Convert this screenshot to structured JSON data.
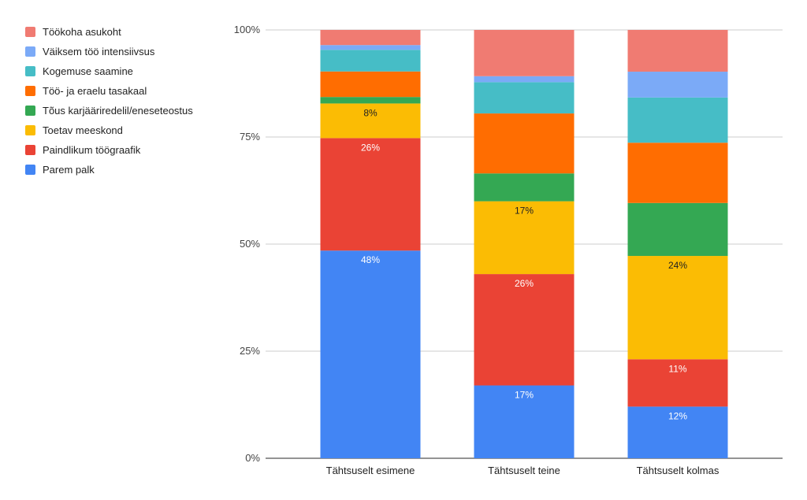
{
  "chart_data": {
    "type": "bar",
    "stacked": true,
    "normalized": true,
    "categories": [
      "Tähtsuselt esimene",
      "Tähtsuselt teine",
      "Tähtsuselt kolmas"
    ],
    "y_ticks": [
      "0%",
      "25%",
      "50%",
      "75%",
      "100%"
    ],
    "ylim": [
      0,
      100
    ],
    "grid": true,
    "legend_position": "left",
    "series": [
      {
        "name": "Parem palk",
        "color": "#4285f4",
        "values": [
          48,
          17,
          12
        ],
        "labels": [
          "48%",
          "17%",
          "12%"
        ],
        "label_color": "#ffffff"
      },
      {
        "name": "Paindlikum töögraafik",
        "color": "#ea4335",
        "values": [
          26,
          26,
          11
        ],
        "labels": [
          "26%",
          "26%",
          "11%"
        ],
        "label_color": "#ffffff"
      },
      {
        "name": "Toetav meeskond",
        "color": "#fbbc04",
        "values": [
          8,
          17,
          24
        ],
        "labels": [
          "8%",
          "17%",
          "24%"
        ],
        "label_color": "#222222"
      },
      {
        "name": "Tõus karjääriredelil/eneseteostus",
        "color": "#34a853",
        "values": [
          1.5,
          6.5,
          12.3
        ],
        "labels": [
          "",
          "",
          ""
        ],
        "label_color": "#ffffff"
      },
      {
        "name": "Töö- ja eraelu tasakaal",
        "color": "#ff6d01",
        "values": [
          5.9,
          14,
          14
        ],
        "labels": [
          "",
          "",
          ""
        ],
        "label_color": "#ffffff"
      },
      {
        "name": "Kogemuse saamine",
        "color": "#46bdc6",
        "values": [
          5,
          7.3,
          10.5
        ],
        "labels": [
          "",
          "",
          ""
        ],
        "label_color": "#ffffff"
      },
      {
        "name": "Väiksem töö intensiivsus",
        "color": "#7baaf7",
        "values": [
          1.1,
          1.4,
          6
        ],
        "labels": [
          "",
          "",
          ""
        ],
        "label_color": "#ffffff"
      },
      {
        "name": "Töökoha asukoht",
        "color": "#f07b72",
        "values": [
          3.5,
          10.8,
          9.7
        ],
        "labels": [
          "",
          "",
          ""
        ],
        "label_color": "#ffffff"
      }
    ]
  }
}
